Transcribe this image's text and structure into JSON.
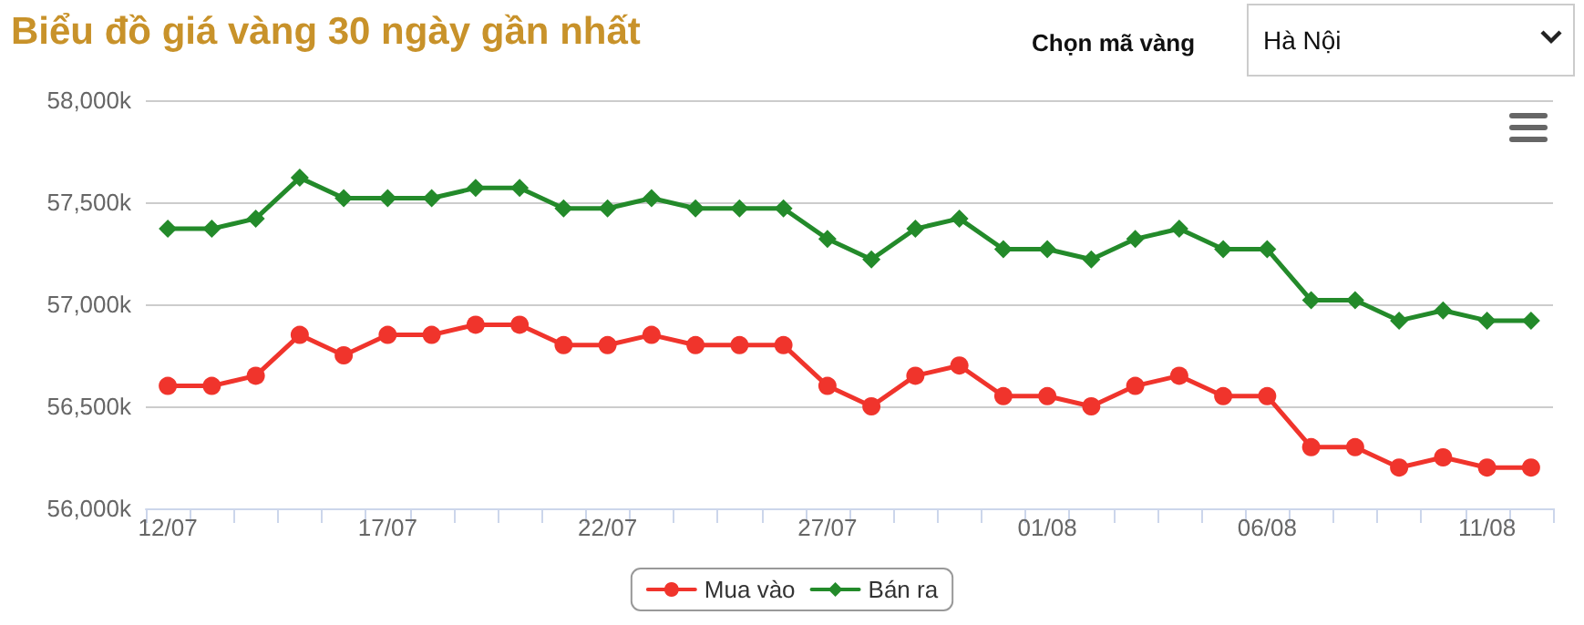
{
  "chart_data": {
    "type": "line",
    "title": "Biểu đồ giá vàng 30 ngày gần nhất",
    "annotations": [
      "Chọn mã vàng",
      "Hà Nội"
    ],
    "categories": [
      "12/07",
      null,
      null,
      null,
      null,
      "17/07",
      null,
      null,
      null,
      null,
      "22/07",
      null,
      null,
      null,
      null,
      "27/07",
      null,
      null,
      null,
      null,
      "01/08",
      null,
      null,
      null,
      null,
      "06/08",
      null,
      null,
      null,
      null,
      "11/08",
      null
    ],
    "series": [
      {
        "name": "Mua vào",
        "color": "#f0342c",
        "marker": "circle",
        "values": [
          56600,
          56600,
          56650,
          56850,
          56750,
          56850,
          56850,
          56900,
          56900,
          56800,
          56800,
          56850,
          56800,
          56800,
          56800,
          56600,
          56500,
          56650,
          56700,
          56550,
          56550,
          56500,
          56600,
          56650,
          56550,
          56550,
          56300,
          56300,
          56200,
          56250,
          56200,
          56200
        ]
      },
      {
        "name": "Bán ra",
        "color": "#238a2a",
        "marker": "diamond",
        "values": [
          57370,
          57370,
          57420,
          57620,
          57520,
          57520,
          57520,
          57570,
          57570,
          57470,
          57470,
          57520,
          57470,
          57470,
          57470,
          57320,
          57220,
          57370,
          57420,
          57270,
          57270,
          57220,
          57320,
          57370,
          57270,
          57270,
          57020,
          57020,
          56920,
          56970,
          56920,
          56920
        ]
      }
    ],
    "ylim": [
      56000,
      58000
    ],
    "yticks": [
      {
        "value": 56000,
        "label": "56,000k"
      },
      {
        "value": 56500,
        "label": "56,500k"
      },
      {
        "value": 57000,
        "label": "57,000k"
      },
      {
        "value": 57500,
        "label": "57,500k"
      },
      {
        "value": 58000,
        "label": "58,000k"
      }
    ],
    "grid": "y",
    "legend": "bottom",
    "line_style": "solid"
  }
}
